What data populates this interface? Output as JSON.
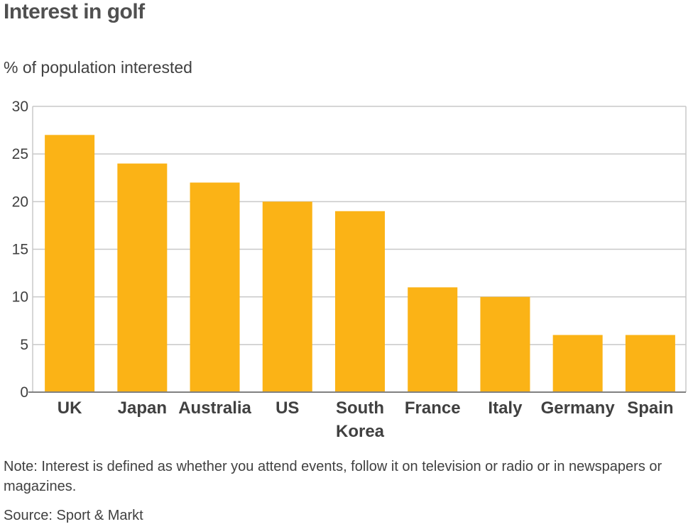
{
  "chart_data": {
    "type": "bar",
    "title": "Interest in golf",
    "subtitle": "% of population interested",
    "categories": [
      "UK",
      "Japan",
      "Australia",
      "US",
      "South Korea",
      "France",
      "Italy",
      "Germany",
      "Spain"
    ],
    "category_lines": [
      [
        "UK"
      ],
      [
        "Japan"
      ],
      [
        "Australia"
      ],
      [
        "US"
      ],
      [
        "South",
        "Korea"
      ],
      [
        "France"
      ],
      [
        "Italy"
      ],
      [
        "Germany"
      ],
      [
        "Spain"
      ]
    ],
    "values": [
      27,
      24,
      22,
      20,
      19,
      11,
      10,
      6,
      6
    ],
    "ylim": [
      0,
      30
    ],
    "yticks": [
      0,
      5,
      10,
      15,
      20,
      25,
      30
    ],
    "grid": true,
    "bar_color": "#fbb316",
    "grid_color": "#c8c8c8"
  },
  "note": "Note: Interest is defined as whether you attend events, follow it on television or radio or in newspapers or magazines.",
  "source": "Source: Sport & Markt"
}
